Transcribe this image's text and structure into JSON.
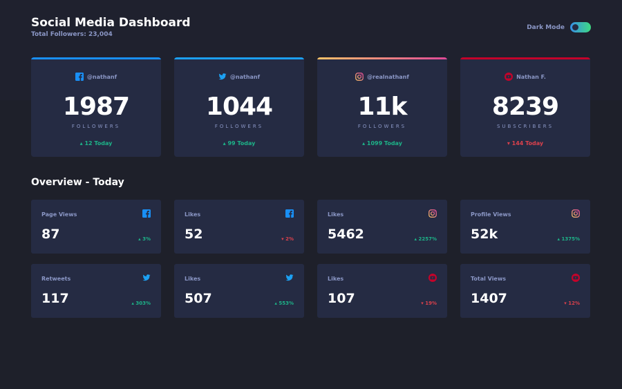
{
  "header": {
    "title": "Social Media Dashboard",
    "total_followers": "Total Followers: 23,004",
    "dark_mode_label": "Dark Mode"
  },
  "colors": {
    "facebook": "#198ff5",
    "twitter": "#1ca0f2",
    "instagram_start": "#fdc468",
    "instagram_end": "#df4996",
    "youtube": "#c4032a",
    "up": "#1db489",
    "down": "#dc414c"
  },
  "cards": [
    {
      "network": "facebook",
      "icon": "facebook-icon",
      "handle": "@nathanf",
      "count": "1987",
      "unit": "FOLLOWERS",
      "delta": "12 Today",
      "direction": "up"
    },
    {
      "network": "twitter",
      "icon": "twitter-icon",
      "handle": "@nathanf",
      "count": "1044",
      "unit": "FOLLOWERS",
      "delta": "99 Today",
      "direction": "up"
    },
    {
      "network": "instagram",
      "icon": "instagram-icon",
      "handle": "@realnathanf",
      "count": "11k",
      "unit": "FOLLOWERS",
      "delta": "1099 Today",
      "direction": "up"
    },
    {
      "network": "youtube",
      "icon": "youtube-icon",
      "handle": "Nathan F.",
      "count": "8239",
      "unit": "SUBSCRIBERS",
      "delta": "144 Today",
      "direction": "down"
    }
  ],
  "overview": {
    "title": "Overview - Today",
    "tiles": [
      {
        "label": "Page Views",
        "icon": "facebook-icon",
        "value": "87",
        "delta": "3%",
        "direction": "up"
      },
      {
        "label": "Likes",
        "icon": "facebook-icon",
        "value": "52",
        "delta": "2%",
        "direction": "down"
      },
      {
        "label": "Likes",
        "icon": "instagram-icon",
        "value": "5462",
        "delta": "2257%",
        "direction": "up"
      },
      {
        "label": "Profile Views",
        "icon": "instagram-icon",
        "value": "52k",
        "delta": "1375%",
        "direction": "up"
      },
      {
        "label": "Retweets",
        "icon": "twitter-icon",
        "value": "117",
        "delta": "303%",
        "direction": "up"
      },
      {
        "label": "Likes",
        "icon": "twitter-icon",
        "value": "507",
        "delta": "553%",
        "direction": "up"
      },
      {
        "label": "Likes",
        "icon": "youtube-icon",
        "value": "107",
        "delta": "19%",
        "direction": "down"
      },
      {
        "label": "Total Views",
        "icon": "youtube-icon",
        "value": "1407",
        "delta": "12%",
        "direction": "down"
      }
    ]
  }
}
